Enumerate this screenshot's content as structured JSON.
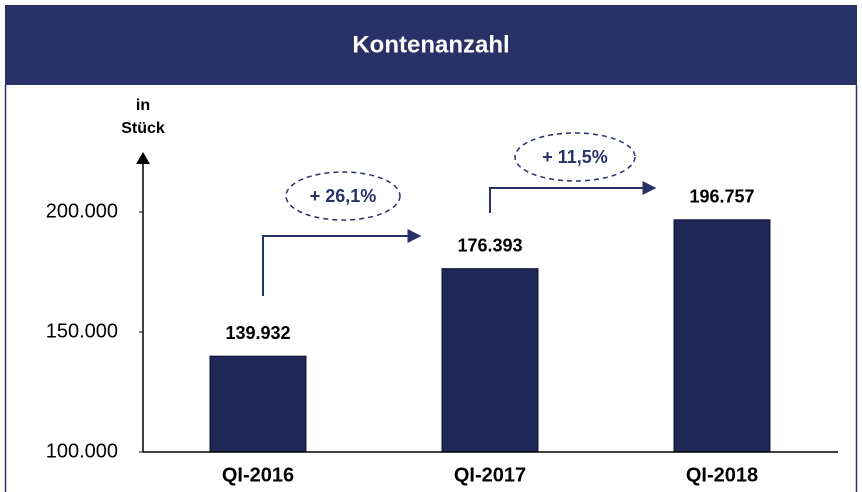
{
  "chart_data": {
    "type": "bar",
    "title": "Kontenanzahl",
    "y_label": [
      "in",
      "Stück"
    ],
    "categories": [
      "QI-2016",
      "QI-2017",
      "QI-2018"
    ],
    "values": [
      139932,
      176393,
      196757
    ],
    "value_labels": [
      "139.932",
      "176.393",
      "196.757"
    ],
    "color": "#1f2756",
    "ylim": [
      100000,
      220000
    ],
    "yticks": [
      {
        "value": 100000,
        "label": "100.000"
      },
      {
        "value": 150000,
        "label": "150.000"
      },
      {
        "value": 200000,
        "label": "200.000"
      }
    ],
    "grid": false,
    "annotations": [
      "+ 26,1%",
      "+ 11,5%"
    ]
  }
}
